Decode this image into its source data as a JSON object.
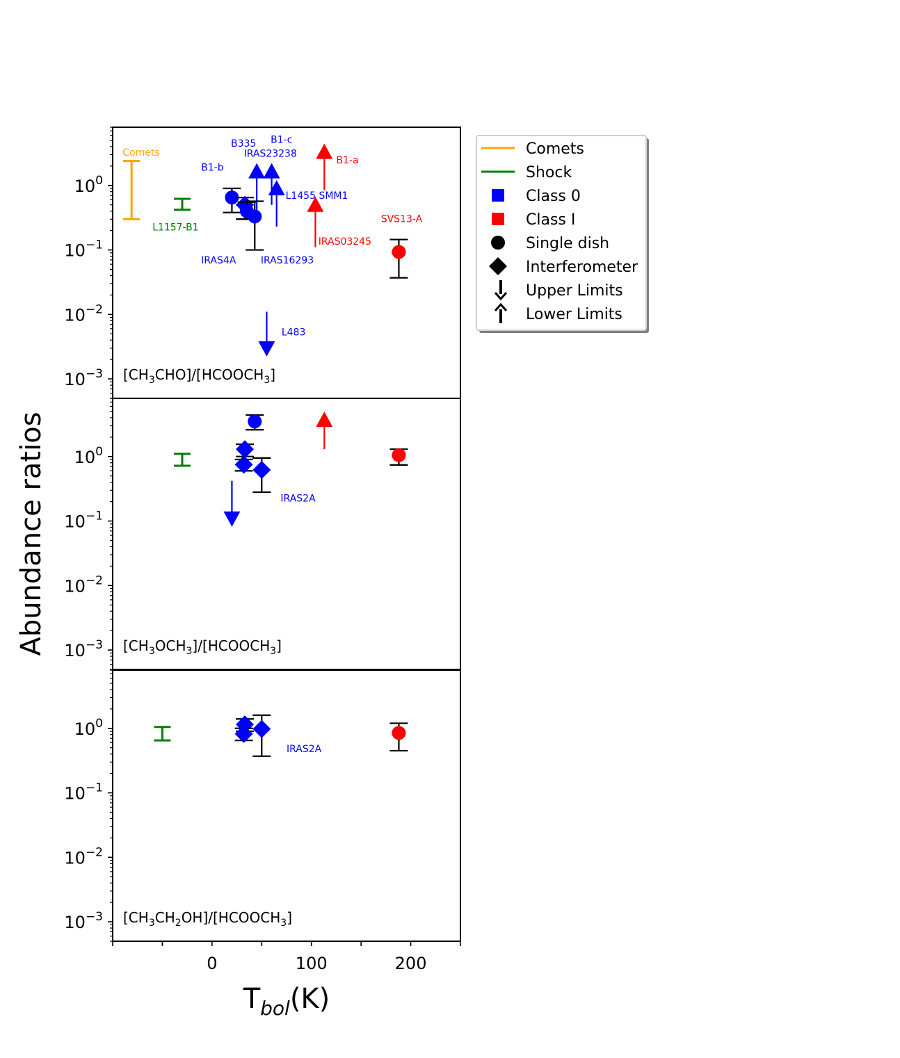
{
  "chart_data": {
    "type": "scatter",
    "xlabel": "T",
    "xlabel_sub": "bol",
    "xlabel_unit": "(K)",
    "ylabel": "Abundance ratios",
    "xlim": [
      -100,
      250
    ],
    "ylim": [
      0.0005,
      8
    ],
    "yscale": "log",
    "x_ticks": [
      0,
      100,
      200
    ],
    "x_tick_labels": [
      "0",
      "100",
      "200"
    ],
    "y_ticks": [
      {
        "value": 1,
        "base": "10",
        "exp": "0"
      },
      {
        "value": 0.1,
        "base": "10",
        "exp": "−1"
      },
      {
        "value": 0.01,
        "base": "10",
        "exp": "−2"
      },
      {
        "value": 0.001,
        "base": "10",
        "exp": "−3"
      }
    ],
    "colors": {
      "class0": "#0000ff",
      "class1": "#ff0000",
      "comets": "#ffa500",
      "shock": "#008000",
      "black": "#000000"
    },
    "legend": {
      "placement": "outside-right-top",
      "entries": [
        {
          "label": "Comets",
          "kind": "line",
          "color": "#ffa500"
        },
        {
          "label": "Shock",
          "kind": "line",
          "color": "#008000"
        },
        {
          "label": "Class 0",
          "kind": "square",
          "color": "#0000ff"
        },
        {
          "label": "Class I",
          "kind": "square",
          "color": "#ff0000"
        },
        {
          "label": "Single dish",
          "kind": "circle",
          "color": "#000000"
        },
        {
          "label": "Interferometer",
          "kind": "diamond",
          "color": "#000000"
        },
        {
          "label": "Upper Limits",
          "kind": "down-arrow",
          "color": "#000000"
        },
        {
          "label": "Lower Limits",
          "kind": "up-arrow",
          "color": "#000000"
        }
      ]
    },
    "panels": [
      {
        "id": "ch3cho",
        "label_pre": "[CH",
        "label_parts": [
          [
            "CH",
            "3",
            "CHO]/[HCOOCH",
            "3",
            "]"
          ]
        ],
        "title_plain": "[CH3CHO]/[HCOOCH3]",
        "points": [
          {
            "source": "B1-b",
            "x": 20,
            "y": 0.65,
            "err": [
              0.38,
              0.9
            ],
            "marker": "circle",
            "class": "class0"
          },
          {
            "source": "IRAS4A",
            "x": 33,
            "y": 0.5,
            "err": [
              0.3,
              0.65
            ],
            "marker": "diamond",
            "class": "class0"
          },
          {
            "source": "IRAS4A",
            "x": 35,
            "y": 0.4,
            "err": [
              0.3,
              0.55
            ],
            "marker": "circle",
            "class": "class0"
          },
          {
            "source": "IRAS16293",
            "x": 43,
            "y": 0.33,
            "err": [
              0.1,
              0.57
            ],
            "marker": "circle",
            "class": "class0"
          },
          {
            "source": "SVS13-A",
            "x": 188,
            "y": 0.093,
            "err": [
              0.037,
              0.145
            ],
            "marker": "circle",
            "class": "class1"
          }
        ],
        "limits": [
          {
            "source": "B335",
            "x": 45,
            "y": 1.65,
            "from": 0.35,
            "kind": "lower",
            "class": "class0"
          },
          {
            "source": "IRAS23238",
            "x": 60,
            "y": 1.65,
            "from": 0.5,
            "kind": "lower",
            "class": "class0"
          },
          {
            "source": "L1455 SMM1",
            "x": 65,
            "y": 0.9,
            "from": 0.23,
            "kind": "lower",
            "class": "class0"
          },
          {
            "source": "B1-a",
            "x": 113,
            "y": 3.3,
            "from": 0.85,
            "kind": "lower",
            "class": "class1"
          },
          {
            "source": "IRAS03245",
            "x": 104,
            "y": 0.5,
            "from": 0.11,
            "kind": "lower",
            "class": "class1"
          },
          {
            "source": "L483",
            "x": 55,
            "y": 0.003,
            "from": 0.011,
            "kind": "upper",
            "class": "class0"
          }
        ],
        "comet_range": [
          0.3,
          2.4
        ],
        "comet_x": -81,
        "shock": {
          "x": -30,
          "range": [
            0.42,
            0.62
          ]
        },
        "annotations": [
          {
            "text": "Comets",
            "x": -90,
            "y": 2.9,
            "color": "#ffa500",
            "anchor": "start"
          },
          {
            "text": "L1157-B1",
            "x": -60,
            "y": 0.2,
            "color": "#008000",
            "anchor": "start"
          },
          {
            "text": "B1-b",
            "x": -11,
            "y": 1.7,
            "color": "#0000ff",
            "anchor": "start"
          },
          {
            "text": "B335",
            "x": 19,
            "y": 4.0,
            "color": "#0000ff",
            "anchor": "start"
          },
          {
            "text": "B1-c",
            "x": 59,
            "y": 4.6,
            "color": "#0000ff",
            "anchor": "start"
          },
          {
            "text": "IRAS23238",
            "x": 32,
            "y": 2.8,
            "color": "#0000ff",
            "anchor": "start"
          },
          {
            "text": "B1-a",
            "x": 125,
            "y": 2.2,
            "color": "#ff0000",
            "anchor": "start"
          },
          {
            "text": "L1455 SMM1",
            "x": 74,
            "y": 0.62,
            "color": "#0000ff",
            "anchor": "start"
          },
          {
            "text": "SVS13-A",
            "x": 170,
            "y": 0.27,
            "color": "#ff0000",
            "anchor": "start"
          },
          {
            "text": "IRAS03245",
            "x": 107,
            "y": 0.12,
            "color": "#ff0000",
            "anchor": "start"
          },
          {
            "text": "IRAS4A",
            "x": -11,
            "y": 0.062,
            "color": "#0000ff",
            "anchor": "start"
          },
          {
            "text": "IRAS16293",
            "x": 49,
            "y": 0.062,
            "color": "#0000ff",
            "anchor": "start"
          },
          {
            "text": "L483",
            "x": 70,
            "y": 0.0047,
            "color": "#0000ff",
            "anchor": "start"
          }
        ]
      },
      {
        "id": "ch3och3",
        "title_plain": "[CH3OCH3]/[HCOOCH3]",
        "points": [
          {
            "source": "IRAS16293",
            "x": 43,
            "y": 3.5,
            "err": [
              2.6,
              4.4
            ],
            "marker": "circle",
            "class": "class0"
          },
          {
            "source": "IRAS4A",
            "x": 33,
            "y": 1.3,
            "err": [
              1.0,
              1.55
            ],
            "marker": "diamond",
            "class": "class0"
          },
          {
            "source": "IRAS4A",
            "x": 32,
            "y": 0.75,
            "err": [
              0.6,
              0.9
            ],
            "marker": "diamond",
            "class": "class0"
          },
          {
            "source": "IRAS2A",
            "x": 50,
            "y": 0.62,
            "err": [
              0.28,
              0.95
            ],
            "marker": "diamond",
            "class": "class0"
          },
          {
            "source": "SVS13-A",
            "x": 188,
            "y": 1.05,
            "err": [
              0.74,
              1.3
            ],
            "marker": "circle",
            "class": "class1"
          }
        ],
        "limits": [
          {
            "source": "B1-a",
            "x": 113,
            "y": 3.7,
            "from": 1.3,
            "kind": "lower",
            "class": "class1"
          },
          {
            "source": "B1-b",
            "x": 20,
            "y": 0.11,
            "from": 0.42,
            "kind": "upper",
            "class": "class0"
          }
        ],
        "shock": {
          "x": -30,
          "range": [
            0.72,
            1.1
          ]
        },
        "annotations": [
          {
            "text": "IRAS2A",
            "x": 69,
            "y": 0.2,
            "color": "#0000ff",
            "anchor": "start"
          }
        ]
      },
      {
        "id": "ch3ch2oh",
        "title_plain": "[CH3CH2OH]/[HCOOCH3]",
        "points": [
          {
            "source": "IRAS4A",
            "x": 33,
            "y": 1.15,
            "err": [
              0.9,
              1.4
            ],
            "marker": "diamond",
            "class": "class0"
          },
          {
            "source": "IRAS4A",
            "x": 32,
            "y": 0.82,
            "err": [
              0.65,
              1.0
            ],
            "marker": "diamond",
            "class": "class0"
          },
          {
            "source": "IRAS2A",
            "x": 50,
            "y": 0.98,
            "err": [
              0.37,
              1.6
            ],
            "marker": "diamond",
            "class": "class0"
          },
          {
            "source": "SVS13-A",
            "x": 188,
            "y": 0.85,
            "err": [
              0.45,
              1.2
            ],
            "marker": "circle",
            "class": "class1"
          }
        ],
        "limits": [],
        "shock": {
          "x": -50,
          "range": [
            0.65,
            1.05
          ]
        },
        "annotations": [
          {
            "text": "IRAS2A",
            "x": 75,
            "y": 0.43,
            "color": "#0000ff",
            "anchor": "start"
          }
        ]
      }
    ]
  }
}
